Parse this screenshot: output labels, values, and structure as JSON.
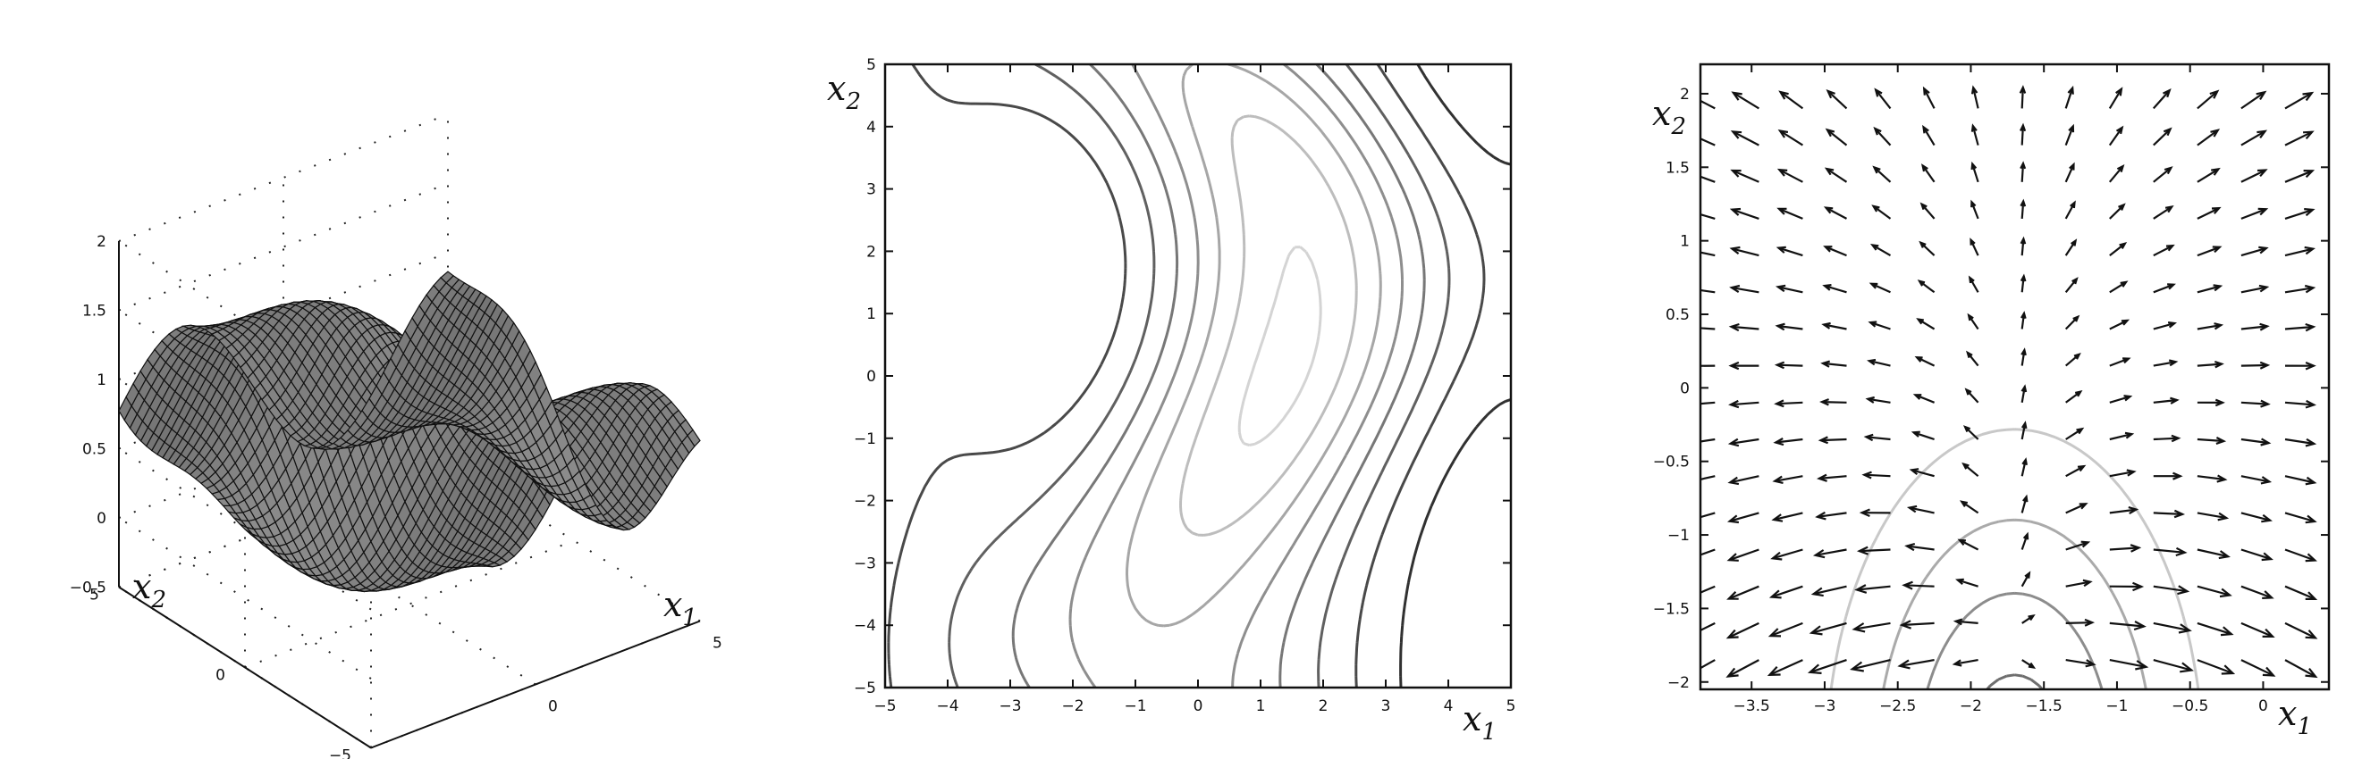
{
  "chart_data": [
    {
      "type": "surface",
      "title": "",
      "xlabel": "x1",
      "ylabel": "x2",
      "xlim": [
        -5,
        5
      ],
      "ylim": [
        -5,
        5
      ],
      "zlim": [
        -0.5,
        2
      ],
      "x_ticks": [
        "−5",
        "0",
        "5"
      ],
      "y_ticks": [
        "5",
        "0",
        "−5"
      ],
      "z_ticks": [
        "2",
        "1.5",
        "1",
        "0.5",
        "0",
        "−0.5"
      ],
      "grid": true,
      "colors": {
        "surface_dark": "#1a1a1a",
        "surface_light": "#e6e6e6",
        "mesh": "#111111"
      }
    },
    {
      "type": "contour",
      "title": "",
      "xlabel": "x1",
      "ylabel": "x2",
      "xlim": [
        -5,
        5
      ],
      "ylim": [
        -5,
        5
      ],
      "x_ticks": [
        "−5",
        "−4",
        "−3",
        "−2",
        "−1",
        "0",
        "1",
        "2",
        "3",
        "4",
        "5"
      ],
      "y_ticks": [
        "5",
        "4",
        "3",
        "2",
        "1",
        "0",
        "−1",
        "−2",
        "−3",
        "−4",
        "−5"
      ],
      "levels": [
        -0.2,
        0.0,
        0.2,
        0.4,
        0.6,
        0.8,
        1.0,
        1.2,
        1.4
      ],
      "grid": false,
      "colors": {
        "low": "#1a1a1a",
        "high": "#d4d4d4"
      }
    },
    {
      "type": "quiver",
      "title": "",
      "xlabel": "x1",
      "ylabel": "x2",
      "xlim": [
        -3.85,
        0.45
      ],
      "ylim": [
        -2.05,
        2.2
      ],
      "x_ticks": [
        "−3.5",
        "−3",
        "−2.5",
        "−2",
        "−1.5",
        "−1",
        "−0.5",
        "0"
      ],
      "y_ticks": [
        "2",
        "1.5",
        "1",
        "0.5",
        "0",
        "−0.5",
        "−1",
        "−1.5",
        "−2"
      ],
      "levels": [
        0.2,
        0.4,
        0.6,
        0.8
      ],
      "grid": false,
      "colors": {
        "arrow": "#111111",
        "contour_dark": "#6e6e6e",
        "contour_light": "#c8c8c8"
      }
    }
  ]
}
